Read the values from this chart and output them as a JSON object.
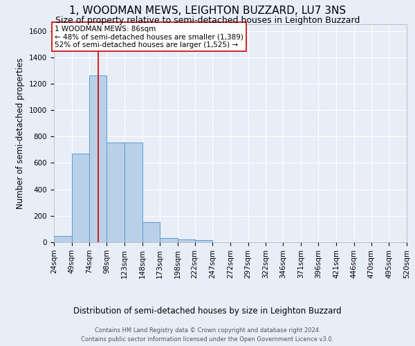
{
  "title": "1, WOODMAN MEWS, LEIGHTON BUZZARD, LU7 3NS",
  "subtitle": "Size of property relative to semi-detached houses in Leighton Buzzard",
  "xlabel": "Distribution of semi-detached houses by size in Leighton Buzzard",
  "ylabel": "Number of semi-detached properties",
  "footnote1": "Contains HM Land Registry data © Crown copyright and database right 2024.",
  "footnote2": "Contains public sector information licensed under the Open Government Licence v3.0.",
  "bin_edges": [
    24,
    49,
    74,
    98,
    123,
    148,
    173,
    198,
    222,
    247,
    272,
    297,
    322,
    346,
    371,
    396,
    421,
    446,
    470,
    495,
    520
  ],
  "bar_heights": [
    45,
    670,
    1265,
    755,
    755,
    150,
    30,
    20,
    15,
    0,
    0,
    0,
    0,
    0,
    0,
    0,
    0,
    0,
    0,
    0
  ],
  "bar_color": "#b8d0e8",
  "bar_edge_color": "#5b9bd5",
  "property_size": 86,
  "red_line_color": "#cc0000",
  "annotation_text": "1 WOODMAN MEWS: 86sqm\n← 48% of semi-detached houses are smaller (1,389)\n52% of semi-detached houses are larger (1,525) →",
  "annotation_box_color": "#ffffff",
  "annotation_border_color": "#cc0000",
  "ylim": [
    0,
    1650
  ],
  "bg_color": "#e8eef8",
  "grid_color": "#ffffff",
  "title_fontsize": 11,
  "subtitle_fontsize": 9,
  "axis_label_fontsize": 8.5,
  "tick_fontsize": 7.5,
  "annotation_fontsize": 7.5,
  "footnote_fontsize": 6.0
}
